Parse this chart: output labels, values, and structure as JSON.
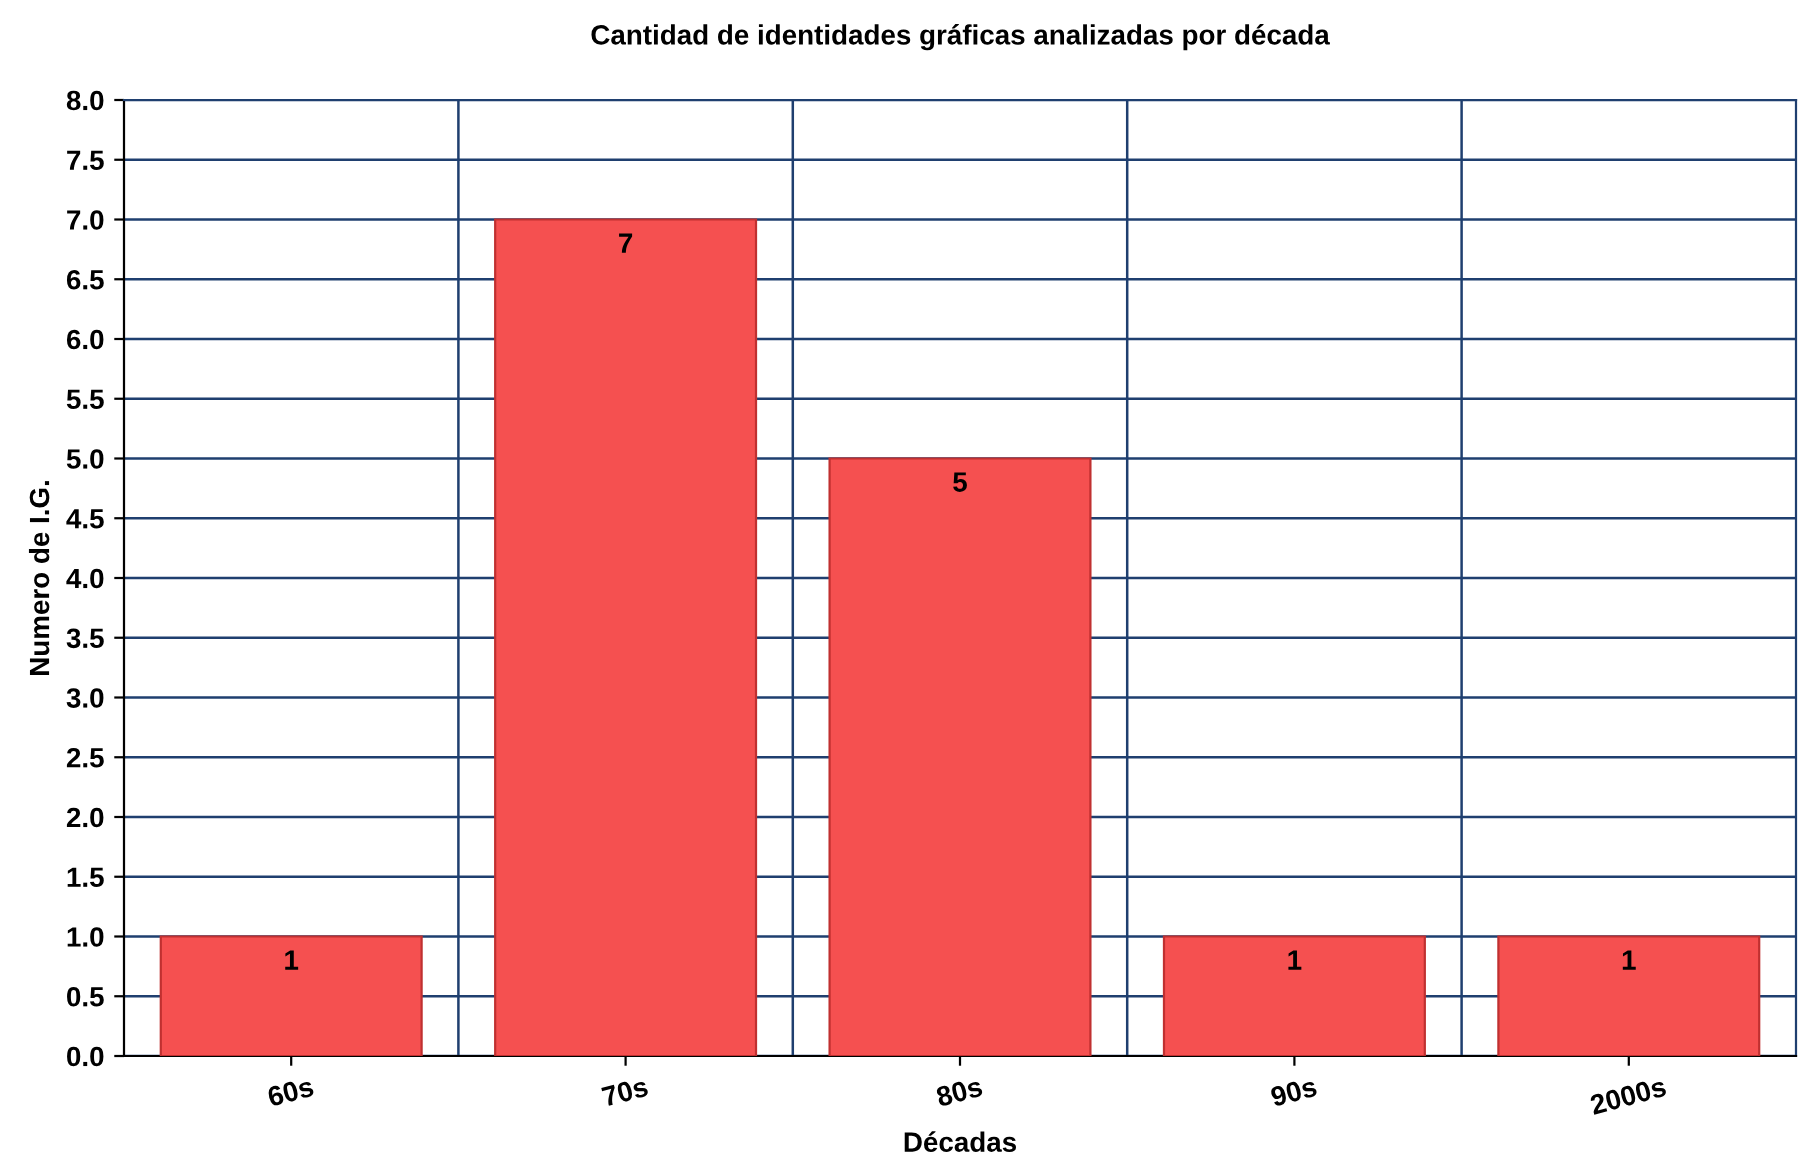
{
  "chart_data": {
    "type": "bar",
    "title": "Cantidad de identidades gráficas analizadas por década",
    "xlabel": "Décadas",
    "ylabel": "Numero de I.G.",
    "categories": [
      "60s",
      "70s",
      "80s",
      "90s",
      "2000s"
    ],
    "values": [
      1,
      7,
      5,
      1,
      1
    ],
    "color": "#f55050",
    "ylim": [
      0,
      8
    ],
    "yticks": [
      {
        "value": 0,
        "label": "0.0"
      },
      {
        "value": 0.5,
        "label": "0.5"
      },
      {
        "value": 1,
        "label": "1.0"
      },
      {
        "value": 1.5,
        "label": "1.5"
      },
      {
        "value": 2,
        "label": "2.0"
      },
      {
        "value": 2.5,
        "label": "2.5"
      },
      {
        "value": 3,
        "label": "3.0"
      },
      {
        "value": 3.5,
        "label": "3.5"
      },
      {
        "value": 4,
        "label": "4.0"
      },
      {
        "value": 4.5,
        "label": "4.5"
      },
      {
        "value": 5,
        "label": "5.0"
      },
      {
        "value": 5.5,
        "label": "5.5"
      },
      {
        "value": 6,
        "label": "6.0"
      },
      {
        "value": 6.5,
        "label": "6.5"
      },
      {
        "value": 7,
        "label": "7.0"
      },
      {
        "value": 7.5,
        "label": "7.5"
      },
      {
        "value": 8,
        "label": "8.0"
      }
    ],
    "grid": true,
    "data_labels": true
  }
}
